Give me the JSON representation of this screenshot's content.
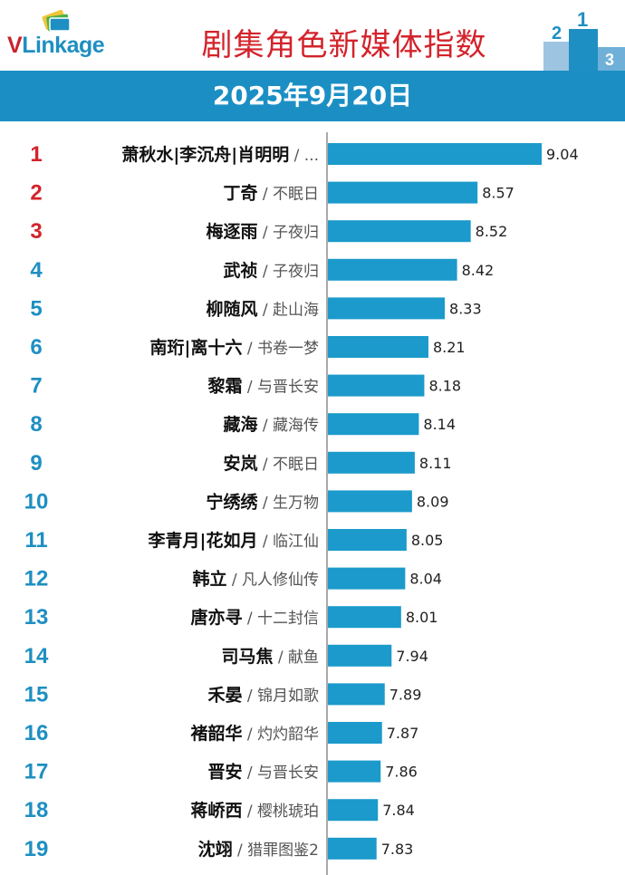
{
  "header": {
    "logo_text": "VLinkage",
    "title": "剧集角色新媒体指数",
    "date": "2025年9月20日"
  },
  "colors": {
    "bar": "#1b9acb",
    "rank_top": "#d3232b",
    "rank_other": "#1e8fc2",
    "banner": "#1b8fc4"
  },
  "chart_data": {
    "type": "bar",
    "orientation": "horizontal",
    "title": "剧集角色新媒体指数",
    "date": "2025年9月20日",
    "rows": [
      {
        "rank": "1",
        "role": "萧秋水|李沉舟|肖明明",
        "drama": "...",
        "value": 9.04
      },
      {
        "rank": "2",
        "role": "丁奇",
        "drama": "不眠日",
        "value": 8.57
      },
      {
        "rank": "3",
        "role": "梅逐雨",
        "drama": "子夜归",
        "value": 8.52
      },
      {
        "rank": "4",
        "role": "武祯",
        "drama": "子夜归",
        "value": 8.42
      },
      {
        "rank": "5",
        "role": "柳随风",
        "drama": "赴山海",
        "value": 8.33
      },
      {
        "rank": "6",
        "role": "南珩|离十六",
        "drama": "书卷一梦",
        "value": 8.21
      },
      {
        "rank": "7",
        "role": "黎霜",
        "drama": "与晋长安",
        "value": 8.18
      },
      {
        "rank": "8",
        "role": "藏海",
        "drama": "藏海传",
        "value": 8.14
      },
      {
        "rank": "9",
        "role": "安岚",
        "drama": "不眠日",
        "value": 8.11
      },
      {
        "rank": "10",
        "role": "宁绣绣",
        "drama": "生万物",
        "value": 8.09
      },
      {
        "rank": "11",
        "role": "李青月|花如月",
        "drama": "临江仙",
        "value": 8.05
      },
      {
        "rank": "12",
        "role": "韩立",
        "drama": "凡人修仙传",
        "value": 8.04
      },
      {
        "rank": "13",
        "role": "唐亦寻",
        "drama": "十二封信",
        "value": 8.01
      },
      {
        "rank": "14",
        "role": "司马焦",
        "drama": "献鱼",
        "value": 7.94
      },
      {
        "rank": "15",
        "role": "禾晏",
        "drama": "锦月如歌",
        "value": 7.89
      },
      {
        "rank": "16",
        "role": "褚韶华",
        "drama": "灼灼韶华",
        "value": 7.87
      },
      {
        "rank": "17",
        "role": "晋安",
        "drama": "与晋长安",
        "value": 7.86
      },
      {
        "rank": "18",
        "role": "蒋峤西",
        "drama": "樱桃琥珀",
        "value": 7.84
      },
      {
        "rank": "19",
        "role": "沈翊",
        "drama": "猎罪图鉴2",
        "value": 7.83
      }
    ]
  }
}
